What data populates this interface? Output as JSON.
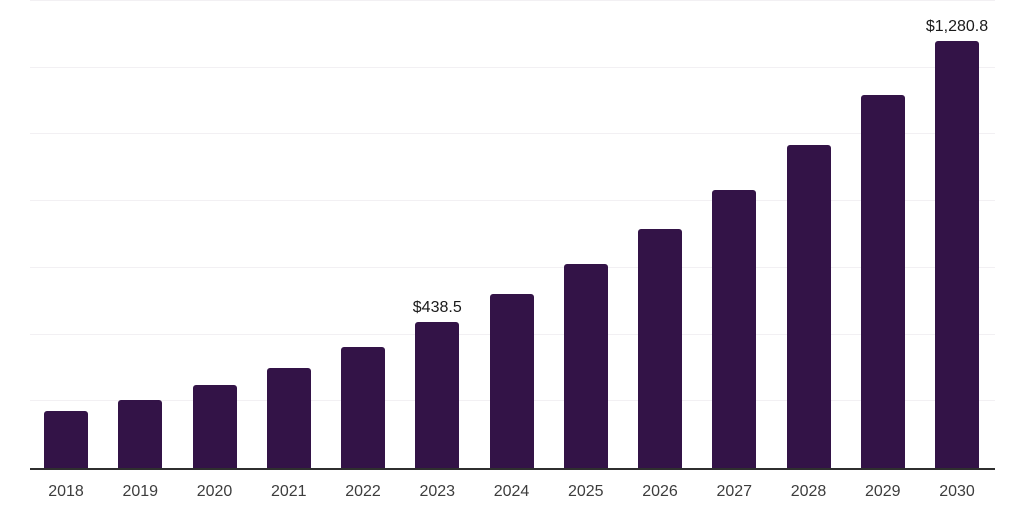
{
  "chart_data": {
    "type": "bar",
    "title": "",
    "xlabel": "",
    "ylabel": "",
    "categories": [
      "2018",
      "2019",
      "2020",
      "2021",
      "2022",
      "2023",
      "2024",
      "2025",
      "2026",
      "2027",
      "2028",
      "2029",
      "2030"
    ],
    "values": [
      171,
      205,
      248,
      301,
      364,
      438.5,
      522,
      612,
      716,
      833,
      967,
      1117,
      1280.8
    ],
    "data_labels": [
      null,
      null,
      null,
      null,
      null,
      "$438.5",
      null,
      null,
      null,
      null,
      null,
      null,
      "$1,280.8"
    ],
    "ylim": [
      0,
      1400
    ],
    "grid_interval": 200,
    "grid": "horizontal",
    "legend": "none",
    "colors": {
      "bar": "#331347",
      "axis": "#2f2f2f",
      "gridline": "#f2f0f3",
      "tick_label": "#3d3d3d",
      "data_label": "#1a1a1a",
      "background": "#ffffff"
    }
  }
}
